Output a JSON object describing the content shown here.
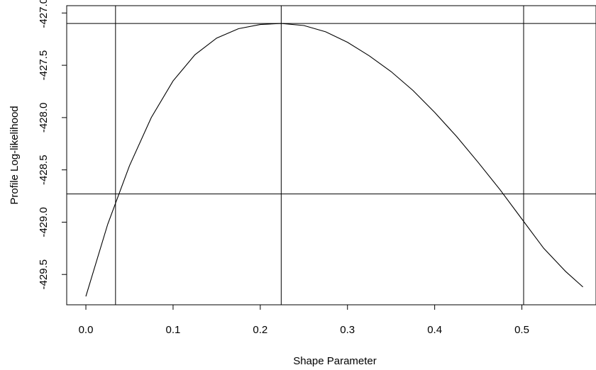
{
  "chart_data": {
    "type": "line",
    "title": "",
    "xlabel": "Shape Parameter",
    "ylabel": "Profile Log-likelihood",
    "xlim": [
      -0.022,
      0.585
    ],
    "ylim": [
      -429.79,
      -426.93
    ],
    "x_ticks": [
      0.0,
      0.1,
      0.2,
      0.3,
      0.4,
      0.5
    ],
    "x_tick_labels": [
      "0.0",
      "0.1",
      "0.2",
      "0.3",
      "0.4",
      "0.5"
    ],
    "y_ticks": [
      -427.0,
      -427.5,
      -428.0,
      -428.5,
      -429.0,
      -429.5
    ],
    "y_tick_labels": [
      "-427.0",
      "-427.5",
      "-428.0",
      "-428.5",
      "-429.0",
      "-429.5"
    ],
    "grid": false,
    "series": [
      {
        "x": [
          0.0,
          0.025,
          0.05,
          0.075,
          0.1,
          0.125,
          0.15,
          0.175,
          0.2,
          0.224,
          0.25,
          0.275,
          0.3,
          0.325,
          0.35,
          0.375,
          0.4,
          0.425,
          0.45,
          0.475,
          0.5,
          0.525,
          0.55,
          0.57
        ],
        "y": [
          -429.71,
          -429.02,
          -428.46,
          -428.0,
          -427.65,
          -427.4,
          -427.24,
          -427.15,
          -427.11,
          -427.1,
          -427.12,
          -427.18,
          -427.28,
          -427.41,
          -427.56,
          -427.74,
          -427.95,
          -428.18,
          -428.43,
          -428.69,
          -428.97,
          -429.25,
          -429.47,
          -429.62
        ]
      }
    ],
    "reference_lines": {
      "vertical_x": [
        0.034,
        0.224,
        0.502
      ],
      "horizontal_y": [
        -427.1,
        -428.73
      ]
    }
  }
}
